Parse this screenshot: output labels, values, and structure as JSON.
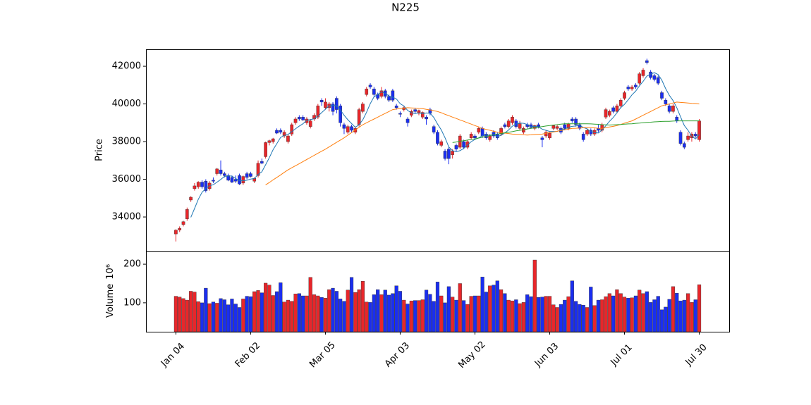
{
  "chart_data": {
    "type": "candlestick",
    "title": "N225",
    "categories": [
      "Jan 04",
      null,
      null,
      null,
      null,
      null,
      null,
      null,
      null,
      null,
      null,
      null,
      null,
      null,
      null,
      null,
      null,
      null,
      null,
      null,
      "Feb 02",
      null,
      null,
      null,
      null,
      null,
      null,
      null,
      null,
      null,
      null,
      null,
      null,
      null,
      null,
      null,
      null,
      null,
      null,
      null,
      "Mar 05",
      null,
      null,
      null,
      null,
      null,
      null,
      null,
      null,
      null,
      null,
      null,
      null,
      null,
      null,
      null,
      null,
      null,
      null,
      null,
      "Apr 03",
      null,
      null,
      null,
      null,
      null,
      null,
      null,
      null,
      null,
      null,
      null,
      null,
      null,
      null,
      null,
      null,
      null,
      null,
      null,
      "May 02",
      null,
      null,
      null,
      null,
      null,
      null,
      null,
      null,
      null,
      null,
      null,
      null,
      null,
      null,
      null,
      null,
      null,
      null,
      null,
      "Jun 03",
      null,
      null,
      null,
      null,
      null,
      null,
      null,
      null,
      null,
      null,
      null,
      null,
      null,
      null,
      null,
      null,
      null,
      null,
      null,
      "Jul 01",
      null,
      null,
      null,
      null,
      null,
      null,
      null,
      null,
      null,
      null,
      null,
      null,
      null,
      null,
      null,
      null,
      null,
      null,
      null,
      "Jul 30"
    ],
    "open": [
      33100,
      33300,
      33600,
      33900,
      34900,
      35500,
      35600,
      35850,
      35900,
      35500,
      35950,
      36300,
      36500,
      36300,
      36200,
      36100,
      36000,
      36200,
      35800,
      36300,
      36300,
      35900,
      36200,
      36950,
      37200,
      37950,
      38000,
      38600,
      38600,
      38300,
      38000,
      38400,
      39000,
      39300,
      39300,
      39000,
      38800,
      39200,
      39300,
      40200,
      39800,
      39800,
      40000,
      40300,
      39900,
      38900,
      38500,
      38800,
      38500,
      38900,
      39600,
      40500,
      41000,
      40800,
      40500,
      40400,
      40700,
      40400,
      40700,
      39900,
      39500,
      39700,
      39200,
      39400,
      39700,
      39500,
      39300,
      39300,
      39700,
      38800,
      38500,
      37800,
      37500,
      37600,
      37300,
      37800,
      37700,
      38000,
      37700,
      38200,
      38300,
      38500,
      38700,
      38400,
      38100,
      38500,
      38400,
      38400,
      38900,
      38800,
      39000,
      39100,
      38700,
      38500,
      38900,
      38900,
      38700,
      38900,
      38200,
      38300,
      38200,
      38700,
      38700,
      38700,
      38900,
      38700,
      39200,
      39200,
      38900,
      38400,
      38400,
      38600,
      38400,
      38700,
      38600,
      39300,
      39400,
      39800,
      39600,
      39900,
      40300,
      40900,
      40800,
      41000,
      41100,
      41500,
      42300,
      41700,
      41500,
      41400,
      40600,
      40200,
      39900,
      39600,
      39300,
      38500,
      37900,
      38100,
      38200,
      38400,
      38100
    ],
    "high": [
      33350,
      33500,
      33800,
      34500,
      35100,
      35800,
      35900,
      35950,
      36000,
      35900,
      36100,
      36600,
      37000,
      36400,
      36300,
      36200,
      36200,
      36300,
      36200,
      36400,
      36400,
      36100,
      37000,
      37100,
      38000,
      38100,
      38200,
      38700,
      38700,
      38600,
      38400,
      39000,
      39300,
      39400,
      39400,
      39300,
      39200,
      39500,
      40000,
      40300,
      40300,
      40100,
      40100,
      40400,
      40000,
      39000,
      38900,
      38900,
      38800,
      39800,
      40100,
      40900,
      41100,
      40900,
      40600,
      40900,
      40800,
      40500,
      40800,
      40000,
      39600,
      39900,
      39300,
      39700,
      39800,
      39700,
      39600,
      39400,
      39800,
      38900,
      38600,
      38100,
      37600,
      37700,
      37600,
      37900,
      38400,
      38100,
      38100,
      38500,
      38400,
      38800,
      38800,
      38500,
      38400,
      38600,
      38500,
      38800,
      39000,
      39200,
      39400,
      39200,
      39100,
      38800,
      39000,
      39000,
      38900,
      39000,
      38300,
      38600,
      38500,
      38900,
      38900,
      38800,
      39000,
      39000,
      39300,
      39300,
      39000,
      38500,
      38700,
      38700,
      38700,
      38900,
      39000,
      39800,
      39700,
      39900,
      40000,
      40300,
      40700,
      41000,
      41000,
      41100,
      41700,
      41900,
      42400,
      41800,
      41600,
      41500,
      40700,
      40300,
      40000,
      40000,
      39400,
      38600,
      38000,
      38500,
      38500,
      38500,
      39200
    ],
    "low": [
      32700,
      33200,
      33500,
      33800,
      34800,
      35400,
      35500,
      35500,
      35300,
      35400,
      35800,
      36200,
      36200,
      36100,
      35900,
      35800,
      35800,
      35700,
      35700,
      36000,
      36100,
      35800,
      36100,
      36800,
      37100,
      37800,
      37900,
      38400,
      38400,
      38200,
      37900,
      38300,
      38900,
      39100,
      39100,
      38900,
      38700,
      39100,
      39200,
      39900,
      39700,
      39600,
      39400,
      39500,
      38800,
      38400,
      38400,
      38500,
      38400,
      38800,
      39500,
      40400,
      40800,
      40400,
      40200,
      40300,
      40300,
      40100,
      40100,
      39700,
      39300,
      39600,
      38800,
      39300,
      39500,
      39400,
      39200,
      38900,
      39400,
      38400,
      37800,
      37700,
      37000,
      36800,
      37100,
      37500,
      37600,
      37600,
      37600,
      38100,
      38100,
      38400,
      38200,
      38100,
      38000,
      38200,
      38100,
      38300,
      38700,
      38700,
      38900,
      38700,
      38600,
      38400,
      38700,
      38700,
      38600,
      38700,
      37700,
      38200,
      38100,
      38600,
      38600,
      38400,
      38600,
      38600,
      39000,
      38800,
      38600,
      38000,
      38300,
      38300,
      38300,
      38500,
      38500,
      39200,
      39300,
      39500,
      39500,
      39800,
      40200,
      40700,
      40700,
      40800,
      41000,
      41400,
      42100,
      41300,
      41200,
      41000,
      40200,
      39900,
      39500,
      39500,
      39000,
      37800,
      37600,
      38000,
      38000,
      38200,
      38000
    ],
    "close": [
      33300,
      33400,
      33750,
      34400,
      35050,
      35650,
      35850,
      35600,
      35400,
      35800,
      35900,
      36550,
      36300,
      36200,
      35950,
      35850,
      35900,
      35750,
      36150,
      36100,
      36150,
      36050,
      36850,
      36850,
      37950,
      38050,
      38150,
      38450,
      38500,
      38500,
      38300,
      38900,
      39200,
      39200,
      39150,
      39200,
      39100,
      39400,
      39900,
      40100,
      40100,
      40000,
      39600,
      39700,
      39000,
      38700,
      38800,
      38600,
      38700,
      39700,
      40000,
      40800,
      40900,
      40500,
      40300,
      40700,
      40400,
      40200,
      40200,
      39800,
      39450,
      39800,
      39000,
      39600,
      39600,
      39650,
      39550,
      39200,
      39500,
      38500,
      37900,
      38000,
      37100,
      37100,
      37500,
      37600,
      38300,
      37700,
      38000,
      38400,
      38200,
      38700,
      38300,
      38200,
      38300,
      38300,
      38200,
      38700,
      38800,
      39100,
      39300,
      38800,
      38950,
      38700,
      38800,
      38750,
      38850,
      38800,
      38100,
      38500,
      38450,
      38850,
      38800,
      38500,
      38700,
      38950,
      39100,
      38900,
      38700,
      38100,
      38600,
      38400,
      38600,
      38600,
      38900,
      39700,
      39600,
      39600,
      39900,
      40200,
      40600,
      40800,
      40900,
      40900,
      41600,
      41800,
      42200,
      41400,
      41300,
      41100,
      40300,
      40000,
      39600,
      39900,
      39100,
      37900,
      37700,
      38300,
      38400,
      38300,
      39100
    ],
    "up_color": "#e8262a",
    "down_color": "#1a2ef0",
    "ylabel": "Price",
    "ylim": [
      32170,
      42900
    ],
    "yticks": [
      34000,
      36000,
      38000,
      40000,
      42000
    ],
    "moving_averages": [
      {
        "color": "#1f77b4",
        "values": [
          null,
          null,
          null,
          null,
          33980,
          34450,
          34940,
          35310,
          35510,
          35660,
          35710,
          35850,
          35990,
          36150,
          36180,
          36170,
          36040,
          35930,
          35920,
          35950,
          36010,
          36040,
          36260,
          36400,
          36770,
          37150,
          37570,
          37890,
          38220,
          38330,
          38380,
          38530,
          38680,
          38820,
          38950,
          39130,
          39170,
          39210,
          39350,
          39540,
          39720,
          39900,
          39940,
          39900,
          39680,
          39400,
          39160,
          38960,
          38760,
          38900,
          39160,
          39560,
          40020,
          40380,
          40500,
          40640,
          40560,
          40420,
          40360,
          40260,
          40010,
          39890,
          39650,
          39530,
          39490,
          39530,
          39480,
          39520,
          39500,
          39280,
          38930,
          38620,
          38200,
          37720,
          37520,
          37460,
          37520,
          37640,
          37820,
          38000,
          38120,
          38200,
          38320,
          38360,
          38340,
          38360,
          38260,
          38340,
          38460,
          38620,
          38820,
          38940,
          38990,
          38970,
          38910,
          38800,
          38810,
          38780,
          38660,
          38600,
          38540,
          38540,
          38540,
          38620,
          38660,
          38760,
          38810,
          38830,
          38870,
          38750,
          38680,
          38540,
          38480,
          38460,
          38620,
          38840,
          39080,
          39280,
          39540,
          39800,
          39980,
          40220,
          40480,
          40680,
          40960,
          41200,
          41480,
          41580,
          41660,
          41560,
          41260,
          40820,
          40460,
          40180,
          39800,
          39320,
          38860,
          38600,
          38300,
          38140,
          38380
        ]
      },
      {
        "color": "#ff7f0e",
        "values": [
          null,
          null,
          null,
          null,
          null,
          null,
          null,
          null,
          null,
          null,
          null,
          null,
          null,
          null,
          null,
          null,
          null,
          null,
          null,
          null,
          null,
          null,
          null,
          null,
          35700,
          35830,
          35970,
          36100,
          36230,
          36370,
          36500,
          36610,
          36720,
          36830,
          36940,
          37050,
          37160,
          37270,
          37380,
          37490,
          37600,
          37720,
          37840,
          37960,
          38080,
          38200,
          38340,
          38480,
          38620,
          38760,
          38900,
          39000,
          39100,
          39200,
          39300,
          39400,
          39500,
          39600,
          39700,
          39730,
          39750,
          39780,
          39800,
          39790,
          39780,
          39760,
          39750,
          39710,
          39680,
          39640,
          39600,
          39530,
          39450,
          39380,
          39300,
          39230,
          39150,
          39080,
          39000,
          38930,
          38850,
          38780,
          38700,
          38650,
          38600,
          38550,
          38500,
          38480,
          38450,
          38430,
          38400,
          38390,
          38380,
          38360,
          38350,
          38360,
          38380,
          38390,
          38400,
          38440,
          38480,
          38510,
          38550,
          38590,
          38630,
          38660,
          38700,
          38710,
          38720,
          38740,
          38750,
          38740,
          38730,
          38710,
          38700,
          38740,
          38780,
          38810,
          38850,
          38910,
          38980,
          39040,
          39100,
          39200,
          39300,
          39400,
          39500,
          39600,
          39700,
          39800,
          39900,
          39950,
          40000,
          40050,
          40100,
          40080,
          40070,
          40050,
          40030,
          40020,
          40000
        ]
      },
      {
        "color": "#2ca02c",
        "values": [
          null,
          null,
          null,
          null,
          null,
          null,
          null,
          null,
          null,
          null,
          null,
          null,
          null,
          null,
          null,
          null,
          null,
          null,
          null,
          null,
          null,
          null,
          null,
          null,
          null,
          null,
          null,
          null,
          null,
          null,
          null,
          null,
          null,
          null,
          null,
          null,
          null,
          null,
          null,
          null,
          null,
          null,
          null,
          null,
          null,
          null,
          null,
          null,
          null,
          null,
          null,
          null,
          null,
          null,
          null,
          null,
          null,
          null,
          null,
          null,
          null,
          null,
          null,
          null,
          null,
          null,
          null,
          null,
          null,
          null,
          null,
          null,
          null,
          null,
          37950,
          37980,
          38020,
          38050,
          38080,
          38120,
          38150,
          38190,
          38230,
          38280,
          38320,
          38360,
          38400,
          38430,
          38470,
          38500,
          38530,
          38570,
          38600,
          38630,
          38670,
          38700,
          38730,
          38770,
          38800,
          38830,
          38850,
          38880,
          38900,
          38930,
          38950,
          38950,
          38950,
          38950,
          38950,
          38950,
          38950,
          38940,
          38930,
          38920,
          38900,
          38890,
          38880,
          38890,
          38900,
          38910,
          38930,
          38940,
          38950,
          38970,
          38980,
          39000,
          39020,
          39030,
          39050,
          39060,
          39070,
          39080,
          39080,
          39090,
          39100,
          39100,
          39100,
          39100,
          39100,
          39100,
          39100
        ]
      }
    ],
    "volume": {
      "ylabel": "Volume",
      "scale_label": "10⁶",
      "ylim": [
        25,
        233
      ],
      "yticks": [
        100,
        200
      ],
      "values": [
        117,
        115,
        111,
        107,
        130,
        128,
        103,
        100,
        138,
        98,
        102,
        99,
        111,
        108,
        95,
        110,
        97,
        88,
        110,
        117,
        116,
        129,
        132,
        126,
        151,
        146,
        119,
        129,
        152,
        102,
        107,
        104,
        123,
        124,
        118,
        118,
        166,
        121,
        118,
        114,
        112,
        134,
        138,
        130,
        110,
        104,
        133,
        166,
        127,
        134,
        156,
        102,
        101,
        121,
        134,
        121,
        133,
        120,
        124,
        144,
        130,
        107,
        97,
        105,
        106,
        106,
        108,
        133,
        122,
        104,
        154,
        118,
        100,
        142,
        115,
        107,
        150,
        106,
        96,
        117,
        118,
        118,
        167,
        128,
        144,
        146,
        157,
        134,
        124,
        107,
        105,
        108,
        98,
        101,
        121,
        116,
        211,
        114,
        115,
        117,
        117,
        95,
        88,
        96,
        107,
        116,
        157,
        104,
        96,
        94,
        88,
        141,
        93,
        107,
        108,
        116,
        124,
        118,
        134,
        124,
        115,
        112,
        113,
        118,
        133,
        124,
        129,
        101,
        108,
        117,
        82,
        89,
        109,
        142,
        125,
        105,
        107,
        124,
        101,
        108,
        147
      ]
    }
  }
}
